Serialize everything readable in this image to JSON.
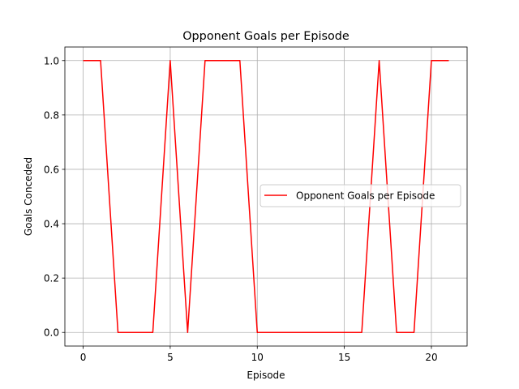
{
  "chart_data": {
    "type": "line",
    "title": "Opponent Goals per Episode",
    "xlabel": "Episode",
    "ylabel": "Goals Conceded",
    "x": [
      0,
      1,
      2,
      3,
      4,
      5,
      6,
      7,
      8,
      9,
      10,
      11,
      12,
      13,
      14,
      15,
      16,
      17,
      18,
      19,
      20,
      21
    ],
    "series": [
      {
        "name": "Opponent Goals per Episode",
        "color": "#ff0000",
        "values": [
          1,
          1,
          0,
          0,
          0,
          1,
          0,
          1,
          1,
          1,
          0,
          0,
          0,
          0,
          0,
          0,
          0,
          1,
          0,
          0,
          1,
          1
        ]
      }
    ],
    "xlim": [
      -1.05,
      22.05
    ],
    "ylim": [
      -0.05,
      1.05
    ],
    "xticks": [
      0,
      5,
      10,
      15,
      20
    ],
    "xtick_labels": [
      "0",
      "5",
      "10",
      "15",
      "20"
    ],
    "yticks": [
      0.0,
      0.2,
      0.4,
      0.6,
      0.8,
      1.0
    ],
    "ytick_labels": [
      "0.0",
      "0.2",
      "0.4",
      "0.6",
      "0.8",
      "1.0"
    ],
    "grid": true,
    "legend_position": "center-right"
  }
}
